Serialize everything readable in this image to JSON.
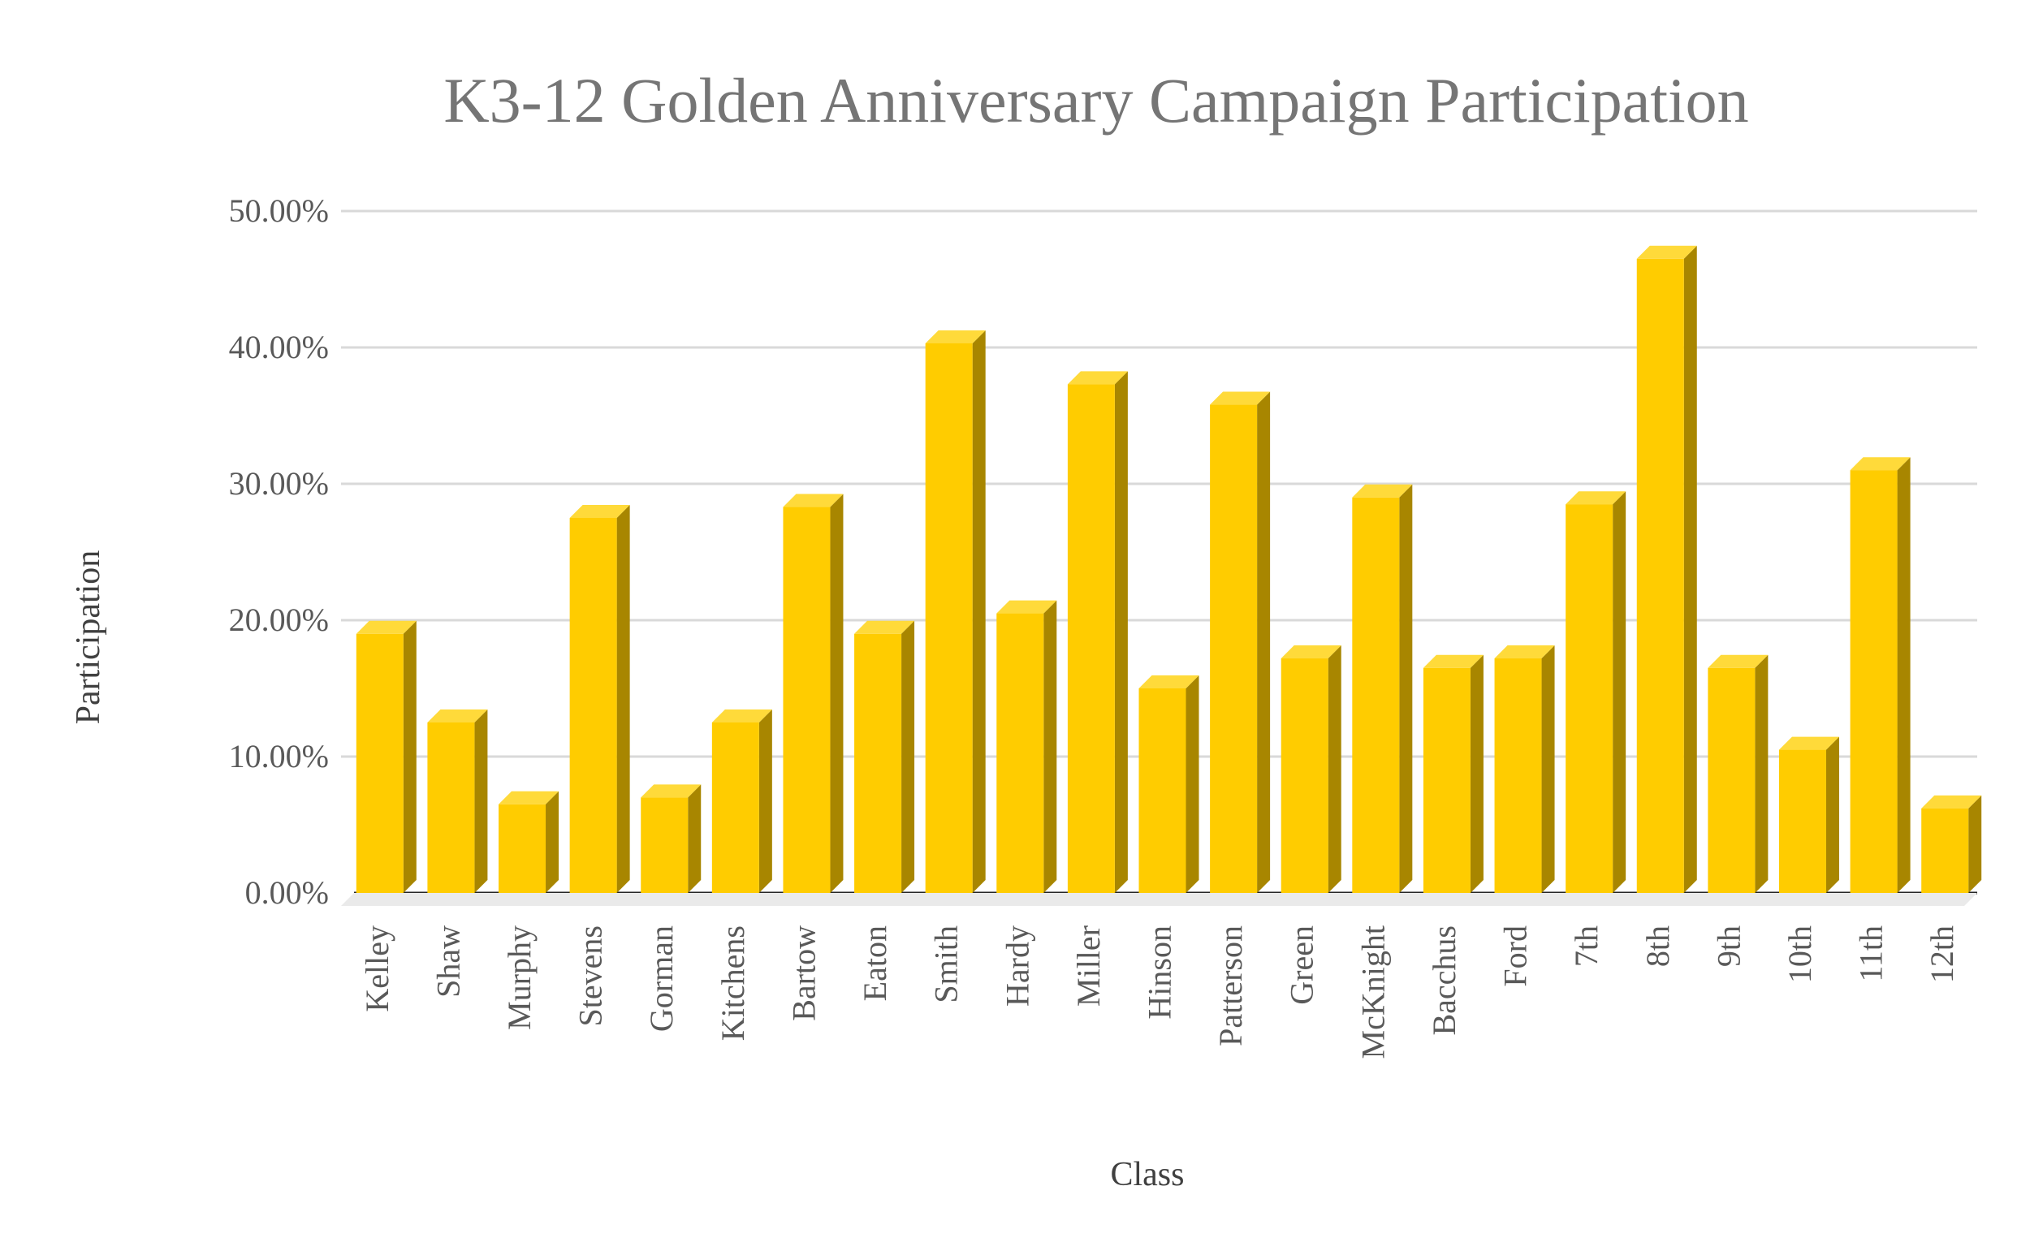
{
  "chart_data": {
    "type": "bar",
    "title": "K3-12 Golden Anniversary Campaign Participation",
    "xlabel": "Class",
    "ylabel": "Participation",
    "ylim": [
      0,
      0.5
    ],
    "yticks": [
      "0.00%",
      "10.00%",
      "20.00%",
      "30.00%",
      "40.00%",
      "50.00%"
    ],
    "grid": true,
    "bar_style": "3d",
    "colors": {
      "bar_front": "#FFCC00",
      "bar_top": "#FFDA3A",
      "bar_side": "#A88600",
      "grid": "#D9D9D9",
      "axis": "#262626",
      "floor": "#EAEAEA",
      "text": "#595959",
      "title": "#757575"
    },
    "categories": [
      "Kelley",
      "Shaw",
      "Murphy",
      "Stevens",
      "Gorman",
      "Kitchens",
      "Bartow",
      "Eaton",
      "Smith",
      "Hardy",
      "Miller",
      "Hinson",
      "Patterson",
      "Green",
      "McKnight",
      "Bacchus",
      "Ford",
      "7th",
      "8th",
      "9th",
      "10th",
      "11th",
      "12th"
    ],
    "values": [
      0.19,
      0.125,
      0.065,
      0.275,
      0.07,
      0.125,
      0.283,
      0.19,
      0.403,
      0.205,
      0.373,
      0.15,
      0.358,
      0.172,
      0.29,
      0.165,
      0.172,
      0.285,
      0.465,
      0.165,
      0.105,
      0.31,
      0.062
    ]
  }
}
